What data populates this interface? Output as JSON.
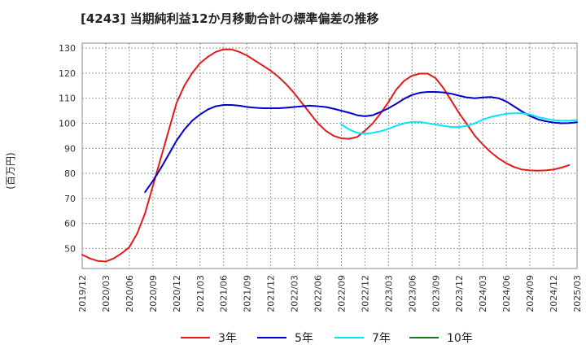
{
  "chart_data": {
    "type": "line",
    "title": "[4243]  当期純利益12か月移動合計の標準偏差の推移",
    "ylabel": "(百万円)",
    "xlabel": "",
    "ylim": [
      42,
      132
    ],
    "y_ticks": [
      50,
      60,
      70,
      80,
      90,
      100,
      110,
      120,
      130
    ],
    "x_tick_labels": [
      "2019/12",
      "2020/03",
      "2020/06",
      "2020/09",
      "2020/12",
      "2021/03",
      "2021/06",
      "2021/09",
      "2021/12",
      "2022/03",
      "2022/06",
      "2022/09",
      "2022/12",
      "2023/03",
      "2023/06",
      "2023/09",
      "2023/12",
      "2024/03",
      "2024/06",
      "2024/09",
      "2024/12",
      "2025/03"
    ],
    "grid": true,
    "series": [
      {
        "name": "3年",
        "color": "#e31a1c",
        "values": [
          47.5,
          46,
          45,
          44.8,
          46,
          48,
          50.5,
          56,
          64,
          75,
          86,
          97,
          108,
          115,
          120,
          124,
          126.5,
          128.5,
          129.5,
          129.5,
          128.5,
          127,
          125,
          123,
          121,
          118.5,
          115.5,
          112,
          108,
          104,
          100,
          97,
          95,
          94,
          93.8,
          94.5,
          97,
          100,
          104,
          108.5,
          113.5,
          117,
          119,
          119.8,
          119.8,
          118,
          114,
          109,
          104,
          99.5,
          95,
          91.5,
          88.5,
          86,
          84,
          82.5,
          81.5,
          81.2,
          81.1,
          81.2,
          81.5,
          82.3,
          83.3
        ]
      },
      {
        "name": "5年",
        "color": "#0000cc",
        "values": [
          null,
          null,
          null,
          null,
          null,
          null,
          null,
          null,
          72.5,
          77,
          82,
          87.5,
          93,
          97.5,
          101,
          103.5,
          105.5,
          106.8,
          107.3,
          107.3,
          107,
          106.5,
          106.2,
          106,
          106,
          106,
          106.2,
          106.5,
          106.8,
          107,
          106.8,
          106.5,
          105.8,
          105,
          104.2,
          103.2,
          102.8,
          103.2,
          104.5,
          106,
          107.8,
          109.8,
          111.3,
          112.2,
          112.5,
          112.5,
          112.3,
          111.8,
          111,
          110.3,
          110,
          110.3,
          110.5,
          110,
          108.7,
          106.7,
          104.7,
          102.9,
          101.6,
          100.8,
          100.3,
          100,
          100.1,
          100.4
        ]
      },
      {
        "name": "7年",
        "color": "#00e5ff",
        "values": [
          null,
          null,
          null,
          null,
          null,
          null,
          null,
          null,
          null,
          null,
          null,
          null,
          null,
          null,
          null,
          null,
          null,
          null,
          null,
          null,
          null,
          null,
          null,
          null,
          null,
          null,
          null,
          null,
          null,
          null,
          null,
          null,
          null,
          99.5,
          97.5,
          96.2,
          95.8,
          96.2,
          96.8,
          97.8,
          99,
          100,
          100.5,
          100.5,
          100,
          99.5,
          99,
          98.5,
          98.5,
          99,
          100,
          101.5,
          102.5,
          103.2,
          103.8,
          104,
          104,
          103.5,
          102.5,
          101.8,
          101.2,
          101,
          101,
          101.3
        ]
      },
      {
        "name": "10年",
        "color": "#1a7a1a",
        "values": []
      }
    ]
  }
}
